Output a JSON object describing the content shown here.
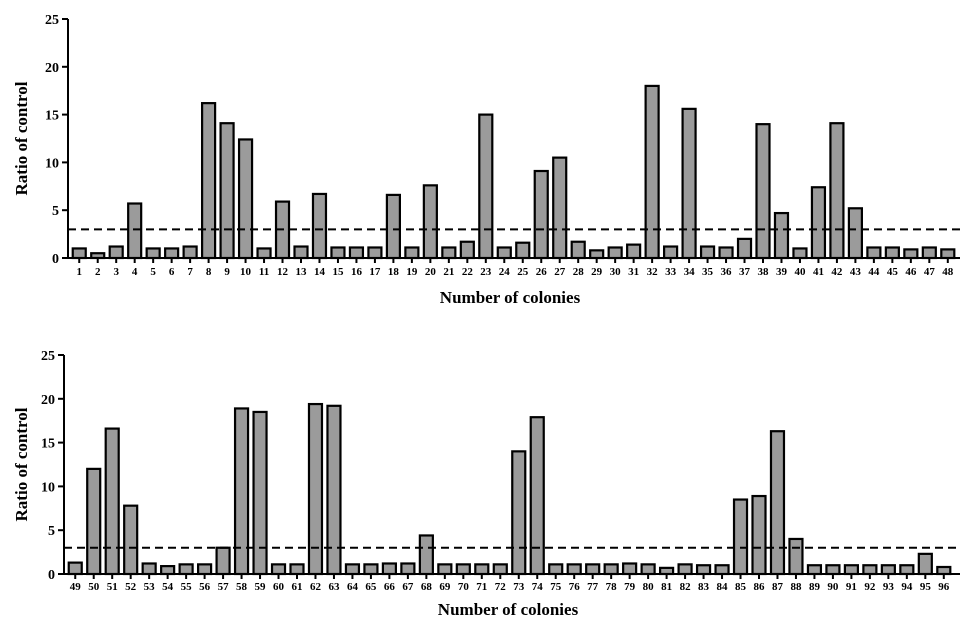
{
  "chart_data": [
    {
      "type": "bar",
      "xlabel": "Number of colonies",
      "ylabel": "Ratio of control",
      "ylim": [
        0,
        25
      ],
      "yticks": [
        0,
        5,
        10,
        15,
        20,
        25
      ],
      "reference_line": 3,
      "grid": false,
      "categories": [
        "1",
        "2",
        "3",
        "4",
        "5",
        "6",
        "7",
        "8",
        "9",
        "10",
        "11",
        "12",
        "13",
        "14",
        "15",
        "16",
        "17",
        "18",
        "19",
        "20",
        "21",
        "22",
        "23",
        "24",
        "25",
        "26",
        "27",
        "28",
        "29",
        "30",
        "31",
        "32",
        "33",
        "34",
        "35",
        "36",
        "37",
        "38",
        "39",
        "40",
        "41",
        "42",
        "43",
        "44",
        "45",
        "46",
        "47",
        "48"
      ],
      "values": [
        1.0,
        0.5,
        1.2,
        5.7,
        1.0,
        1.0,
        1.2,
        16.2,
        14.1,
        12.4,
        1.0,
        5.9,
        1.2,
        6.7,
        1.1,
        1.1,
        1.1,
        6.6,
        1.1,
        7.6,
        1.1,
        1.7,
        15.0,
        1.1,
        1.6,
        9.1,
        10.5,
        1.7,
        0.8,
        1.1,
        1.4,
        18.0,
        1.2,
        15.6,
        1.2,
        1.1,
        2.0,
        14.0,
        4.7,
        1.0,
        7.4,
        14.1,
        5.2,
        1.1,
        1.1,
        0.9,
        1.1,
        0.9
      ]
    },
    {
      "type": "bar",
      "xlabel": "Number of colonies",
      "ylabel": "Ratio of control",
      "ylim": [
        0,
        25
      ],
      "yticks": [
        0,
        5,
        10,
        15,
        20,
        25
      ],
      "reference_line": 3,
      "grid": false,
      "categories": [
        "49",
        "50",
        "51",
        "52",
        "53",
        "54",
        "55",
        "56",
        "57",
        "58",
        "59",
        "60",
        "61",
        "62",
        "63",
        "64",
        "65",
        "66",
        "67",
        "68",
        "69",
        "70",
        "71",
        "72",
        "73",
        "74",
        "75",
        "76",
        "77",
        "78",
        "79",
        "80",
        "81",
        "82",
        "83",
        "84",
        "85",
        "86",
        "87",
        "88",
        "89",
        "90",
        "91",
        "92",
        "93",
        "94",
        "95",
        "96"
      ],
      "values": [
        1.3,
        12.0,
        16.6,
        7.8,
        1.2,
        0.9,
        1.1,
        1.1,
        3.0,
        18.9,
        18.5,
        1.1,
        1.1,
        19.4,
        19.2,
        1.1,
        1.1,
        1.2,
        1.2,
        4.4,
        1.1,
        1.1,
        1.1,
        1.1,
        14.0,
        17.9,
        1.1,
        1.1,
        1.1,
        1.1,
        1.2,
        1.1,
        0.7,
        1.1,
        1.0,
        1.0,
        8.5,
        8.9,
        16.3,
        4.0,
        1.0,
        1.0,
        1.0,
        1.0,
        1.0,
        1.0,
        2.3,
        0.8
      ]
    }
  ]
}
